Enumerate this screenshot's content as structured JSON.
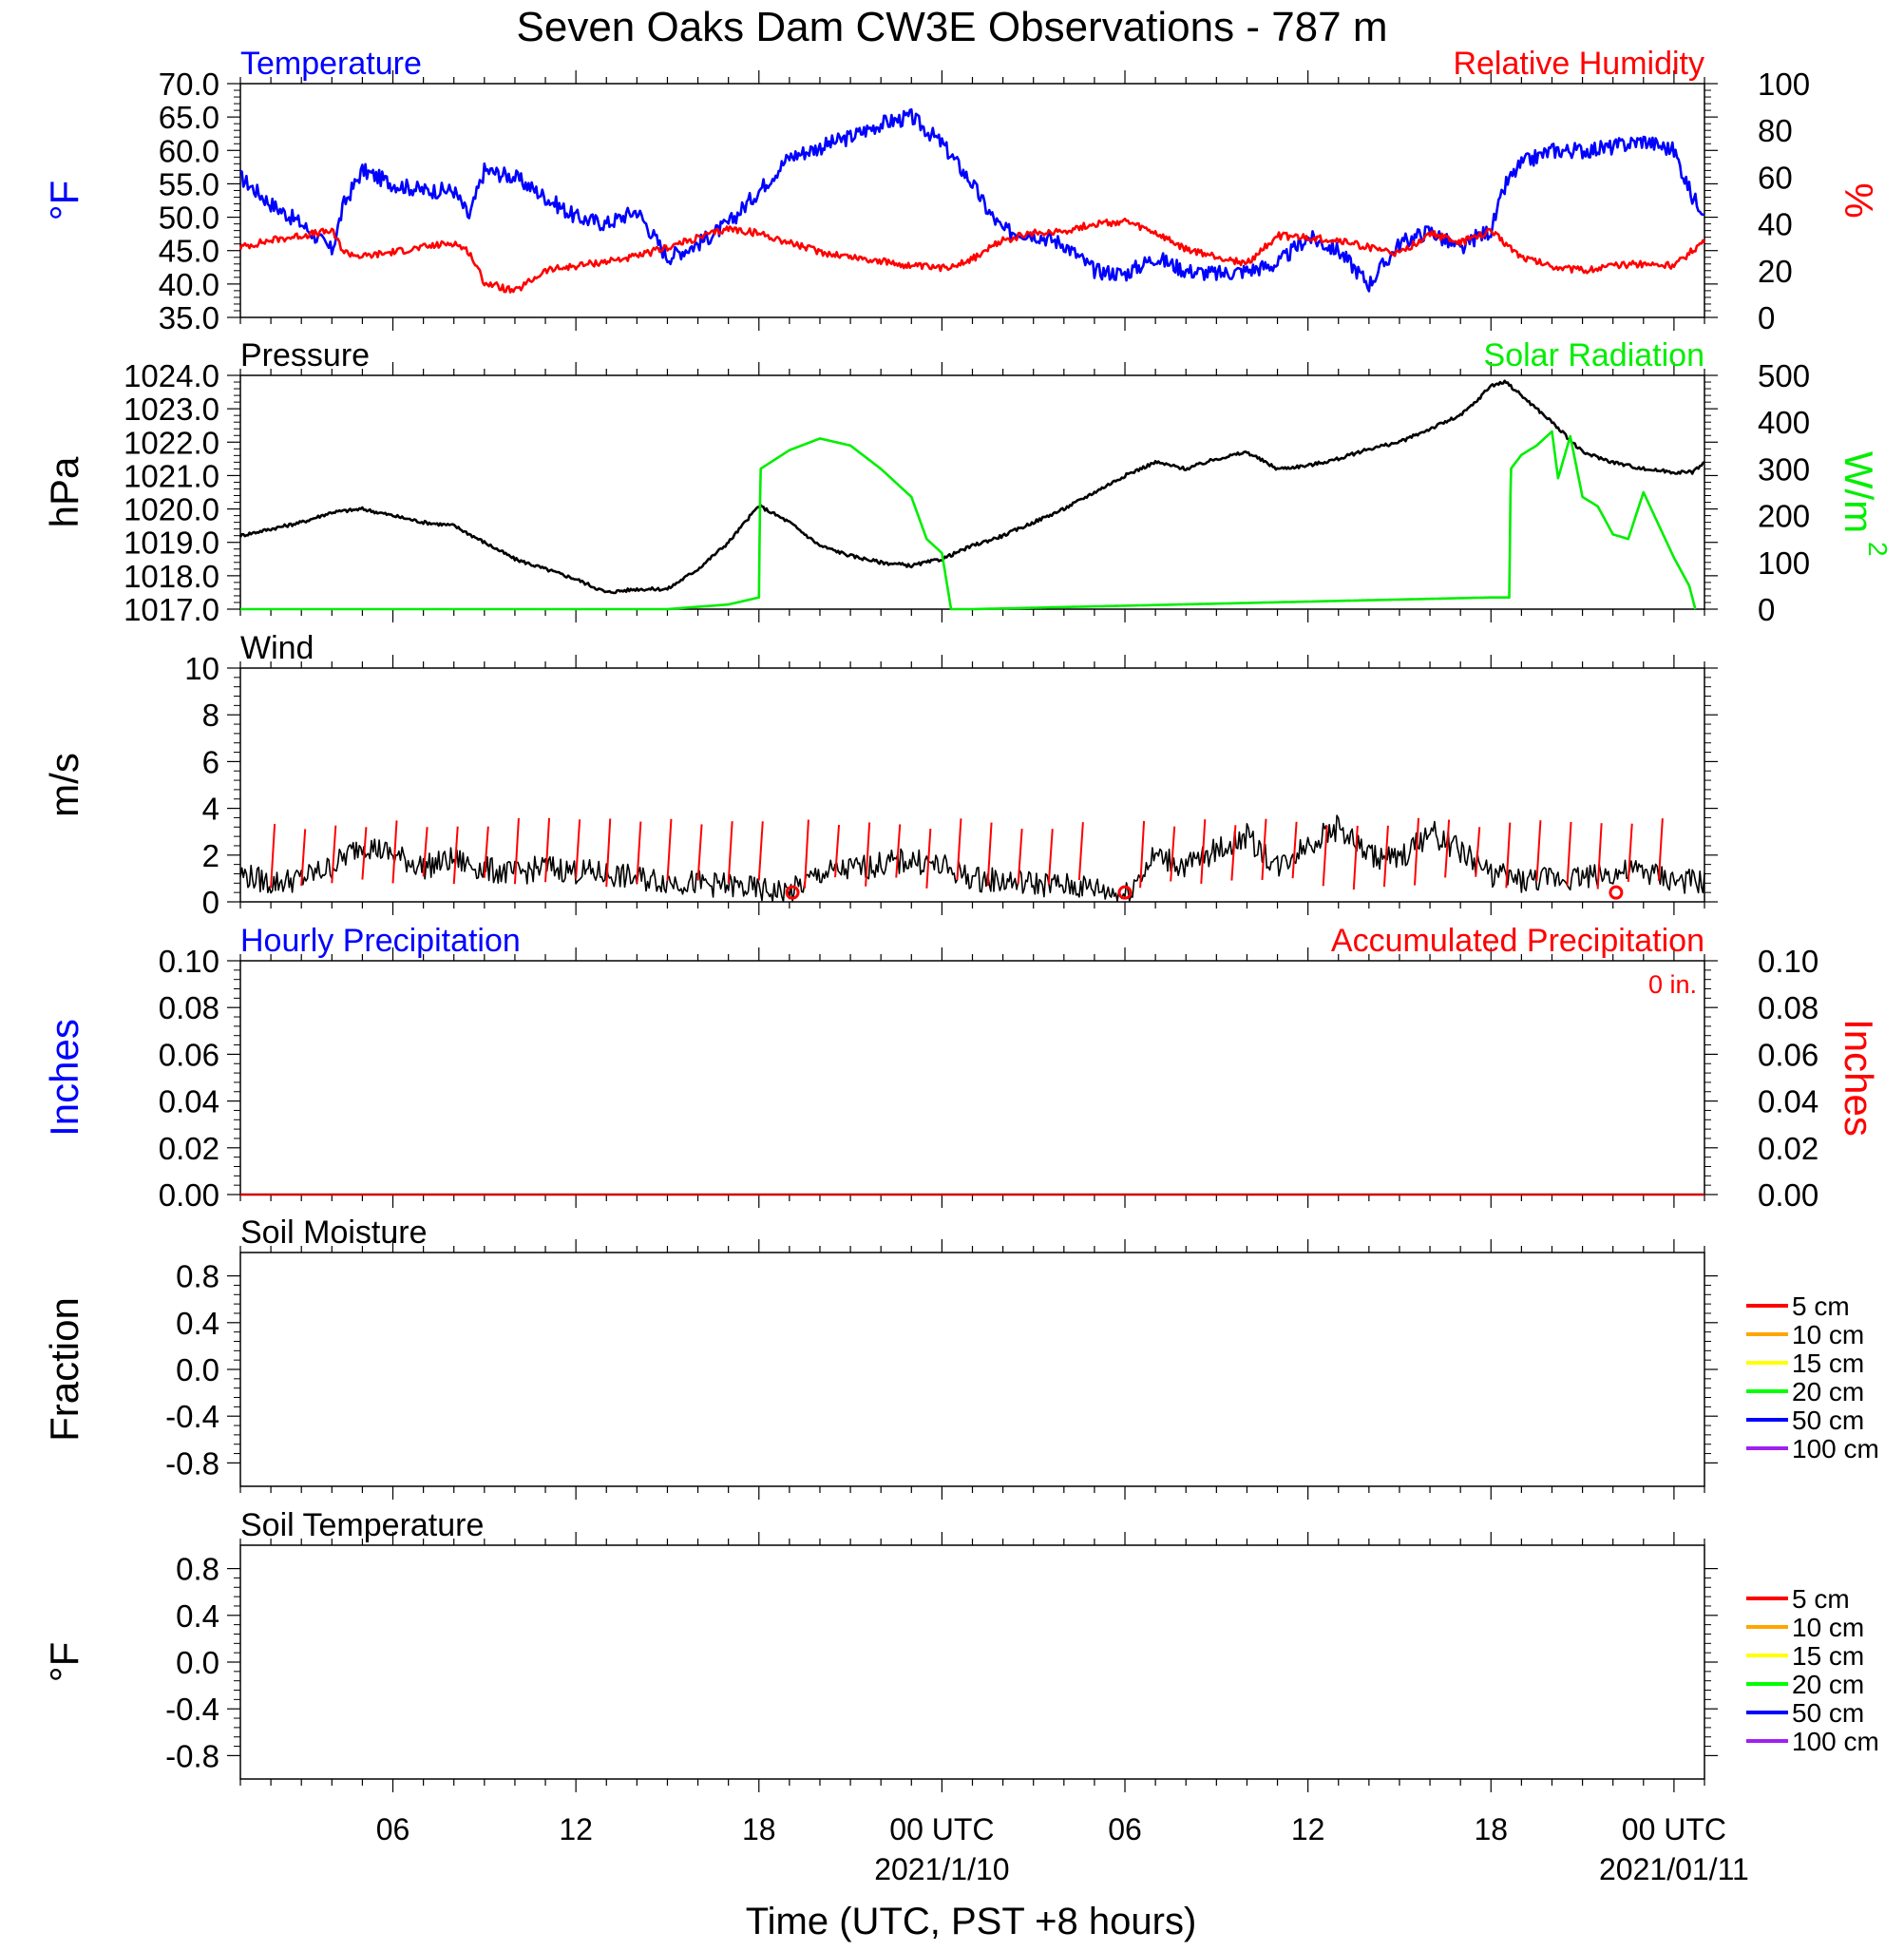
{
  "figure": {
    "title": "Seven Oaks Dam CW3E Observations - 787 m",
    "xlabel": "Time (UTC, PST +8 hours)",
    "x_ticks": [
      {
        "hour": 6,
        "label": "06",
        "date": ""
      },
      {
        "hour": 12,
        "label": "12",
        "date": ""
      },
      {
        "hour": 18,
        "label": "18",
        "date": ""
      },
      {
        "hour": 24,
        "label": "00 UTC",
        "date": "2021/1/10"
      },
      {
        "hour": 30,
        "label": "06",
        "date": ""
      },
      {
        "hour": 36,
        "label": "12",
        "date": ""
      },
      {
        "hour": 42,
        "label": "18",
        "date": ""
      },
      {
        "hour": 48,
        "label": "00 UTC",
        "date": "2021/01/11"
      }
    ],
    "x_range_hours": [
      1,
      49
    ]
  },
  "colors": {
    "temperature": "#0000ff",
    "humidity": "#ff0000",
    "pressure": "#000000",
    "solar": "#00ee00",
    "wind": "#000000",
    "wind_barb": "#ff0000",
    "accum_precip": "#cc0000"
  },
  "chart_data": [
    {
      "type": "line",
      "id": "temp_rh",
      "left_title": "Temperature",
      "right_title": "Relative Humidity",
      "ylabel_left": "°F",
      "ylabel_right": "%",
      "ylim_left": [
        35,
        70
      ],
      "ylim_right": [
        0,
        100
      ],
      "yticks_left": [
        "35.0",
        "40.0",
        "45.0",
        "50.0",
        "55.0",
        "60.0",
        "65.0",
        "70.0"
      ],
      "yticks_right": [
        "0",
        "20",
        "40",
        "60",
        "80",
        "100"
      ],
      "series": [
        {
          "key": "temp",
          "axis": "left",
          "color_key": "temperature",
          "x": [
            1,
            2,
            3,
            4,
            4.4,
            5,
            6,
            7,
            8,
            8.5,
            9,
            10,
            11,
            12,
            13,
            14,
            15,
            16,
            17,
            18,
            19,
            20,
            21,
            22,
            23,
            24,
            25,
            25.5,
            26,
            27,
            28,
            29,
            30,
            31,
            32,
            33,
            34,
            35,
            36,
            37,
            38,
            39,
            40,
            41,
            41.5,
            42,
            42.5,
            43,
            44,
            45,
            46,
            47,
            48,
            48.6,
            49
          ],
          "y": [
            56,
            52,
            49,
            45,
            52,
            57,
            55,
            54,
            54,
            50,
            57,
            56,
            53,
            50,
            49,
            51,
            44,
            46,
            49,
            54,
            59,
            60.5,
            62,
            64,
            65,
            61,
            55,
            51,
            48,
            47.5,
            46,
            42,
            41.5,
            44,
            42,
            41.5,
            42,
            43,
            47,
            45,
            40,
            46,
            48,
            45,
            47,
            48,
            55,
            58,
            60,
            60,
            60.5,
            61.5,
            60,
            53,
            51
          ]
        },
        {
          "key": "rh",
          "axis": "right",
          "color_key": "humidity",
          "x": [
            1,
            2,
            3,
            4,
            4.4,
            5,
            6,
            7,
            8,
            8.5,
            9,
            10,
            11,
            12,
            13,
            14,
            15,
            16,
            17,
            18,
            19,
            20,
            21,
            22,
            23,
            24,
            25,
            26,
            27,
            28,
            29,
            30,
            31,
            32,
            33,
            34,
            35,
            36,
            37,
            38,
            39,
            40,
            41,
            42,
            43,
            44,
            45,
            46,
            47,
            48,
            49
          ],
          "y": [
            30,
            33,
            35,
            37,
            28,
            26,
            28,
            30,
            32,
            28,
            15,
            11,
            20,
            22,
            24,
            26,
            30,
            34,
            38,
            36,
            32,
            28,
            26,
            24,
            22,
            21,
            25,
            33,
            36,
            37,
            40,
            41,
            36,
            29,
            26,
            23,
            35,
            34,
            33,
            30,
            27,
            36,
            32,
            37,
            26,
            22,
            20,
            22,
            23,
            22,
            33
          ]
        }
      ]
    },
    {
      "type": "line",
      "id": "pressure_solar",
      "left_title": "Pressure",
      "right_title": "Solar Radiation",
      "ylabel_left": "hPa",
      "ylabel_right": "W/m",
      "ylabel_right_sup": "2",
      "ylim_left": [
        1017,
        1024
      ],
      "ylim_right": [
        0,
        500
      ],
      "yticks_left": [
        "1017.0",
        "1018.0",
        "1019.0",
        "1020.0",
        "1021.0",
        "1022.0",
        "1023.0",
        "1024.0"
      ],
      "yticks_right": [
        "0",
        "100",
        "200",
        "300",
        "400",
        "500"
      ],
      "series": [
        {
          "key": "pressure",
          "axis": "left",
          "color_key": "pressure",
          "x": [
            1,
            2,
            3,
            4,
            5,
            6,
            7,
            8,
            9,
            10,
            11,
            12,
            13,
            14,
            15,
            16,
            17,
            18,
            18.2,
            19,
            20,
            21,
            22,
            23,
            24,
            25,
            26,
            27,
            28,
            29,
            30,
            31,
            32,
            33,
            34,
            35,
            36,
            37,
            38,
            39,
            40,
            41,
            41.5,
            42,
            42.5,
            43,
            44,
            45,
            46,
            47,
            48,
            48.6,
            49
          ],
          "y": [
            1019.2,
            1019.4,
            1019.6,
            1019.9,
            1020,
            1019.8,
            1019.6,
            1019.5,
            1019.0,
            1018.5,
            1018.2,
            1017.9,
            1017.5,
            1017.6,
            1017.6,
            1018.2,
            1019.0,
            1020.1,
            1020.0,
            1019.6,
            1018.9,
            1018.6,
            1018.4,
            1018.3,
            1018.5,
            1018.9,
            1019.2,
            1019.6,
            1020.0,
            1020.5,
            1021.0,
            1021.4,
            1021.2,
            1021.5,
            1021.7,
            1021.2,
            1021.3,
            1021.5,
            1021.8,
            1022.0,
            1022.4,
            1022.8,
            1023.2,
            1023.7,
            1023.8,
            1023.4,
            1022.6,
            1021.7,
            1021.4,
            1021.2,
            1021.1,
            1021.1,
            1021.4
          ]
        },
        {
          "key": "solar",
          "axis": "right",
          "color_key": "solar",
          "x": [
            1,
            15,
            17,
            18,
            18.05,
            19,
            20,
            21,
            22,
            23,
            23.5,
            24,
            24.3,
            25,
            42,
            42.6,
            42.65,
            43,
            43.5,
            44,
            44.2,
            44.6,
            45,
            45.5,
            46,
            46.5,
            47,
            47.5,
            48,
            48.5,
            48.7
          ],
          "y": [
            0,
            0,
            10,
            25,
            300,
            340,
            365,
            350,
            300,
            240,
            150,
            120,
            0,
            0,
            25,
            25,
            300,
            330,
            350,
            380,
            280,
            370,
            240,
            220,
            160,
            150,
            250,
            180,
            110,
            50,
            0
          ]
        }
      ]
    },
    {
      "type": "line",
      "id": "wind",
      "left_title": "Wind",
      "ylabel_left": "m/s",
      "ylim_left": [
        0,
        10
      ],
      "yticks_left": [
        "0",
        "2",
        "4",
        "6",
        "8",
        "10"
      ],
      "series": [
        {
          "key": "wind",
          "axis": "left",
          "color_key": "wind",
          "x": [
            1,
            2,
            3,
            4,
            5,
            6,
            7,
            8,
            9,
            10,
            11,
            12,
            13,
            14,
            15,
            16,
            17,
            18,
            19,
            20,
            21,
            22,
            23,
            24,
            25,
            26,
            27,
            28,
            29,
            30,
            31,
            32,
            33,
            34,
            35,
            36,
            37,
            38,
            39,
            40,
            41,
            42,
            43,
            44,
            45,
            46,
            47,
            48,
            49
          ],
          "y": [
            1.2,
            0.8,
            1.0,
            1.5,
            2.5,
            2.0,
            1.5,
            1.8,
            1.4,
            1.2,
            1.5,
            1.3,
            1.2,
            1.0,
            0.9,
            0.8,
            0.7,
            0.5,
            0.4,
            1.2,
            1.4,
            1.6,
            1.8,
            1.5,
            1.0,
            0.9,
            0.8,
            0.7,
            0.6,
            0.3,
            2.0,
            1.5,
            2.2,
            2.8,
            1.5,
            2.5,
            3.2,
            2.0,
            1.8,
            3.0,
            2.2,
            1.2,
            0.9,
            1.0,
            1.1,
            1.2,
            1.3,
            0.9,
            0.8
          ]
        }
      ],
      "barb_hours": [
        2,
        3,
        4,
        5,
        6,
        7,
        8,
        9,
        10,
        11,
        12,
        13,
        14,
        15,
        16,
        17,
        18,
        19.5,
        20.5,
        21.5,
        22.5,
        23.5,
        24.5,
        25.5,
        26.5,
        27.5,
        28.5,
        30.5,
        31.5,
        32.5,
        33.5,
        34.5,
        35.5,
        36.5,
        37.5,
        38.5,
        39.5,
        40.5,
        41.5,
        42.5,
        43.5,
        44.5,
        45.5,
        46.5,
        47.5
      ],
      "calm_hours": [
        19.1,
        30.0,
        46.1
      ]
    },
    {
      "type": "line",
      "id": "precip",
      "left_title": "Hourly Precipitation",
      "right_title": "Accumulated Precipitation",
      "annotation": "0 in.",
      "ylabel_left": "Inches",
      "ylabel_right": "Inches",
      "ylim_left": [
        0,
        0.1
      ],
      "ylim_right": [
        0,
        0.1
      ],
      "yticks_left": [
        "0.00",
        "0.02",
        "0.04",
        "0.06",
        "0.08",
        "0.10"
      ],
      "yticks_right": [
        "0.00",
        "0.02",
        "0.04",
        "0.06",
        "0.08",
        "0.10"
      ],
      "series": [
        {
          "key": "accum",
          "axis": "right",
          "color_key": "accum_precip",
          "x": [
            1,
            49
          ],
          "y": [
            0,
            0
          ]
        }
      ]
    },
    {
      "type": "line",
      "id": "soil_moisture",
      "left_title": "Soil Moisture",
      "ylabel_left": "Fraction",
      "ylim_left": [
        -1.0,
        1.0
      ],
      "yticks_left": [
        "-0.8",
        "-0.4",
        "0.0",
        "0.4",
        "0.8"
      ],
      "legend": [
        {
          "label": "5 cm",
          "color": "#ff0000"
        },
        {
          "label": "10 cm",
          "color": "#ffa500"
        },
        {
          "label": "15 cm",
          "color": "#ffff00"
        },
        {
          "label": "20 cm",
          "color": "#00ff00"
        },
        {
          "label": "50 cm",
          "color": "#0000ff"
        },
        {
          "label": "100 cm",
          "color": "#a020f0"
        }
      ],
      "series": []
    },
    {
      "type": "line",
      "id": "soil_temperature",
      "left_title": "Soil Temperature",
      "ylabel_left": "°F",
      "ylim_left": [
        -1.0,
        1.0
      ],
      "yticks_left": [
        "-0.8",
        "-0.4",
        "0.0",
        "0.4",
        "0.8"
      ],
      "legend": [
        {
          "label": "5 cm",
          "color": "#ff0000"
        },
        {
          "label": "10 cm",
          "color": "#ffa500"
        },
        {
          "label": "15 cm",
          "color": "#ffff00"
        },
        {
          "label": "20 cm",
          "color": "#00ff00"
        },
        {
          "label": "50 cm",
          "color": "#0000ff"
        },
        {
          "label": "100 cm",
          "color": "#a020f0"
        }
      ],
      "series": []
    }
  ]
}
